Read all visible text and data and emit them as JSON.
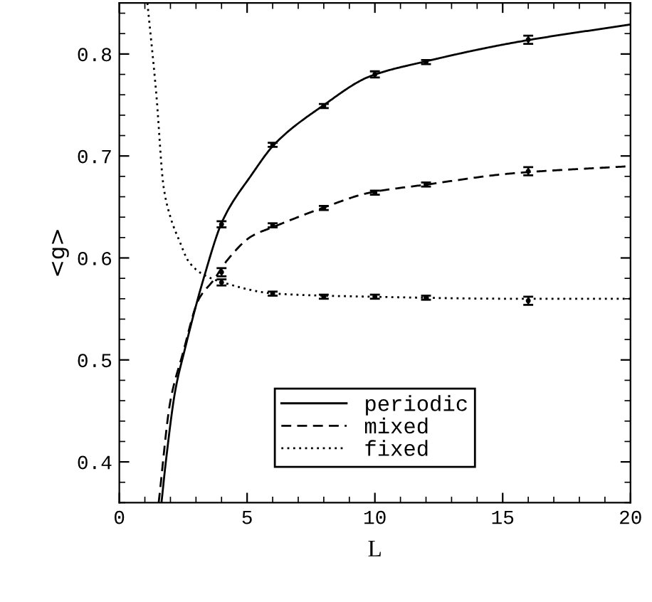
{
  "chart_data": {
    "type": "line",
    "xlabel": "L",
    "ylabel": "<g>",
    "xlim": [
      0,
      20
    ],
    "ylim": [
      0.36,
      0.85
    ],
    "xticks": [
      0,
      5,
      10,
      15,
      20
    ],
    "yticks": [
      {
        "value": 0.4,
        "label": "0.4"
      },
      {
        "value": 0.5,
        "label": "0.5"
      },
      {
        "value": 0.6,
        "label": "0.6"
      },
      {
        "value": 0.7,
        "label": "0.7"
      },
      {
        "value": 0.8,
        "label": "0.8"
      }
    ],
    "grid": false,
    "legend": "bottom",
    "series": [
      {
        "name": "periodic",
        "line_style": "solid",
        "color": "#000000",
        "x": [
          1.65,
          1.82,
          2.19,
          2.56,
          3.3,
          4.05,
          5.16,
          6.09,
          7.95,
          9.8,
          12.03,
          15.4,
          20
        ],
        "values": [
          0.36,
          0.4,
          0.47,
          0.51,
          0.58,
          0.637,
          0.681,
          0.712,
          0.749,
          0.778,
          0.793,
          0.811,
          0.829
        ]
      },
      {
        "name": "mixed",
        "line_style": "dashed",
        "color": "#000000",
        "x": [
          1.54,
          2.0,
          2.47,
          3.12,
          3.68,
          4.23,
          5.16,
          6.09,
          7.95,
          9.8,
          12.03,
          15.4,
          20
        ],
        "values": [
          0.36,
          0.46,
          0.505,
          0.56,
          0.578,
          0.598,
          0.621,
          0.631,
          0.649,
          0.664,
          0.672,
          0.683,
          0.69
        ]
      },
      {
        "name": "fixed",
        "line_style": "dotted",
        "color": "#000000",
        "x": [
          1.1,
          1.45,
          1.73,
          2.0,
          2.38,
          2.7,
          3.2,
          4.05,
          6.09,
          9.8,
          15.4,
          20
        ],
        "values": [
          0.85,
          0.76,
          0.67,
          0.64,
          0.615,
          0.597,
          0.585,
          0.576,
          0.565,
          0.562,
          0.56,
          0.56
        ]
      },
      {
        "type": "scatter",
        "marker": "circle",
        "color": "#000000",
        "x": [
          4,
          6,
          8,
          10,
          12,
          16
        ],
        "values": [
          0.633,
          0.711,
          0.749,
          0.78,
          0.792,
          0.814
        ],
        "errors": [
          0.003,
          0.002,
          0.002,
          0.003,
          0.002,
          0.004
        ]
      },
      {
        "type": "scatter",
        "marker": "circle",
        "color": "#000000",
        "x": [
          4,
          6,
          8,
          10,
          12,
          16
        ],
        "values": [
          0.586,
          0.632,
          0.649,
          0.664,
          0.672,
          0.685
        ],
        "errors": [
          0.004,
          0.002,
          0.002,
          0.002,
          0.002,
          0.004
        ]
      },
      {
        "type": "scatter",
        "marker": "circle",
        "color": "#000000",
        "x": [
          4,
          6,
          8,
          10,
          12,
          16
        ],
        "values": [
          0.576,
          0.565,
          0.562,
          0.562,
          0.561,
          0.558
        ],
        "errors": [
          0.003,
          0.002,
          0.002,
          0.002,
          0.002,
          0.004
        ]
      }
    ]
  }
}
